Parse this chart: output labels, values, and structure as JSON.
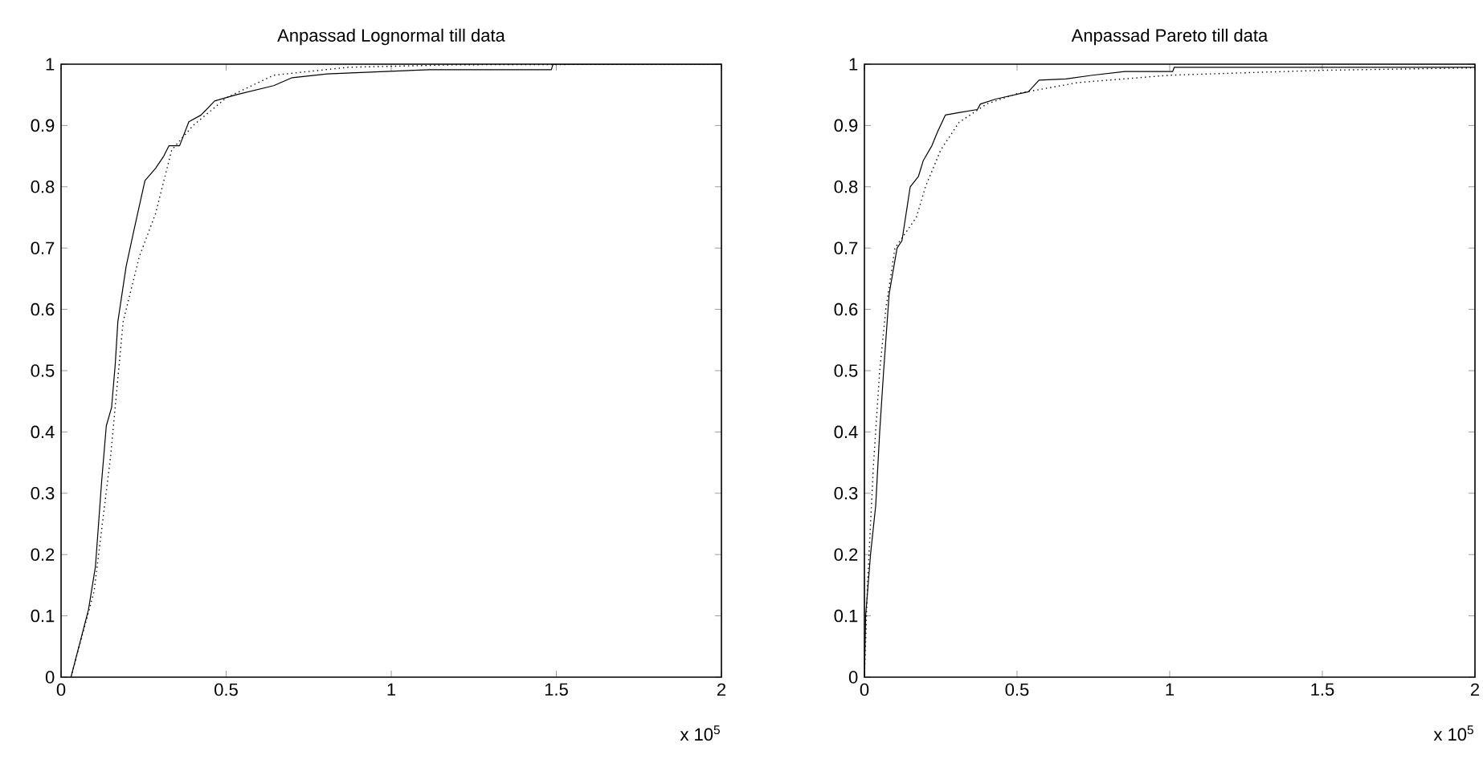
{
  "chart_data": [
    {
      "type": "line",
      "title": "Anpassad Lognormal till data",
      "xlim": [
        0,
        2
      ],
      "ylim": [
        0,
        1
      ],
      "xticks": [
        0,
        0.5,
        1,
        1.5,
        2
      ],
      "yticks": [
        0,
        0.1,
        0.2,
        0.3,
        0.4,
        0.5,
        0.6,
        0.7,
        0.8,
        0.9,
        1
      ],
      "annotations": [
        "x 10$^{5}$"
      ],
      "series": [
        {
          "color": "#000000",
          "line_style": "solid",
          "x": [
            0.03,
            0.083,
            0.104,
            0.123,
            0.137,
            0.153,
            0.164,
            0.172,
            0.197,
            0.221,
            0.254,
            0.286,
            0.311,
            0.327,
            0.359,
            0.387,
            0.424,
            0.465,
            0.53,
            0.644,
            0.7,
            0.806,
            0.937,
            1.116,
            1.485,
            1.49,
            2
          ],
          "values": [
            0,
            0.11,
            0.18,
            0.32,
            0.41,
            0.44,
            0.51,
            0.58,
            0.67,
            0.73,
            0.81,
            0.83,
            0.85,
            0.867,
            0.867,
            0.906,
            0.917,
            0.94,
            0.95,
            0.965,
            0.978,
            0.984,
            0.987,
            0.991,
            0.991,
            1,
            1
          ]
        },
        {
          "color": "#000000",
          "line_style": "dotted",
          "x": [
            0.03,
            0.1,
            0.15,
            0.188,
            0.237,
            0.286,
            0.335,
            0.4,
            0.5,
            0.644,
            0.87,
            1.2,
            2
          ],
          "values": [
            0,
            0.14,
            0.36,
            0.58,
            0.686,
            0.756,
            0.86,
            0.9,
            0.945,
            0.982,
            0.995,
            0.999,
            1
          ]
        }
      ]
    },
    {
      "type": "line",
      "title": "Anpassad Pareto till data",
      "xlim": [
        0,
        2
      ],
      "ylim": [
        0,
        1
      ],
      "xticks": [
        0,
        0.5,
        1,
        1.5,
        2
      ],
      "yticks": [
        0,
        0.1,
        0.2,
        0.3,
        0.4,
        0.5,
        0.6,
        0.7,
        0.8,
        0.9,
        1
      ],
      "annotations": [
        "x 10$^{5}$"
      ],
      "series": [
        {
          "color": "#000000",
          "line_style": "solid",
          "x": [
            0,
            0.004,
            0.02,
            0.037,
            0.05,
            0.063,
            0.081,
            0.107,
            0.123,
            0.15,
            0.177,
            0.193,
            0.221,
            0.239,
            0.265,
            0.309,
            0.37,
            0.38,
            0.43,
            0.537,
            0.572,
            0.66,
            0.747,
            0.853,
            1.01,
            1.015,
            2
          ],
          "values": [
            0,
            0.1,
            0.2,
            0.28,
            0.4,
            0.5,
            0.625,
            0.7,
            0.712,
            0.8,
            0.817,
            0.843,
            0.867,
            0.889,
            0.917,
            0.921,
            0.926,
            0.935,
            0.943,
            0.955,
            0.974,
            0.976,
            0.982,
            0.988,
            0.988,
            0.995,
            0.995
          ]
        },
        {
          "color": "#000000",
          "line_style": "dotted",
          "x": [
            0,
            0.01,
            0.03,
            0.05,
            0.07,
            0.1,
            0.17,
            0.2,
            0.25,
            0.31,
            0.4,
            0.5,
            0.7,
            1.0,
            1.5,
            2
          ],
          "values": [
            0,
            0.15,
            0.35,
            0.5,
            0.6,
            0.7,
            0.75,
            0.8,
            0.86,
            0.905,
            0.935,
            0.952,
            0.97,
            0.982,
            0.99,
            0.994
          ]
        }
      ]
    }
  ]
}
